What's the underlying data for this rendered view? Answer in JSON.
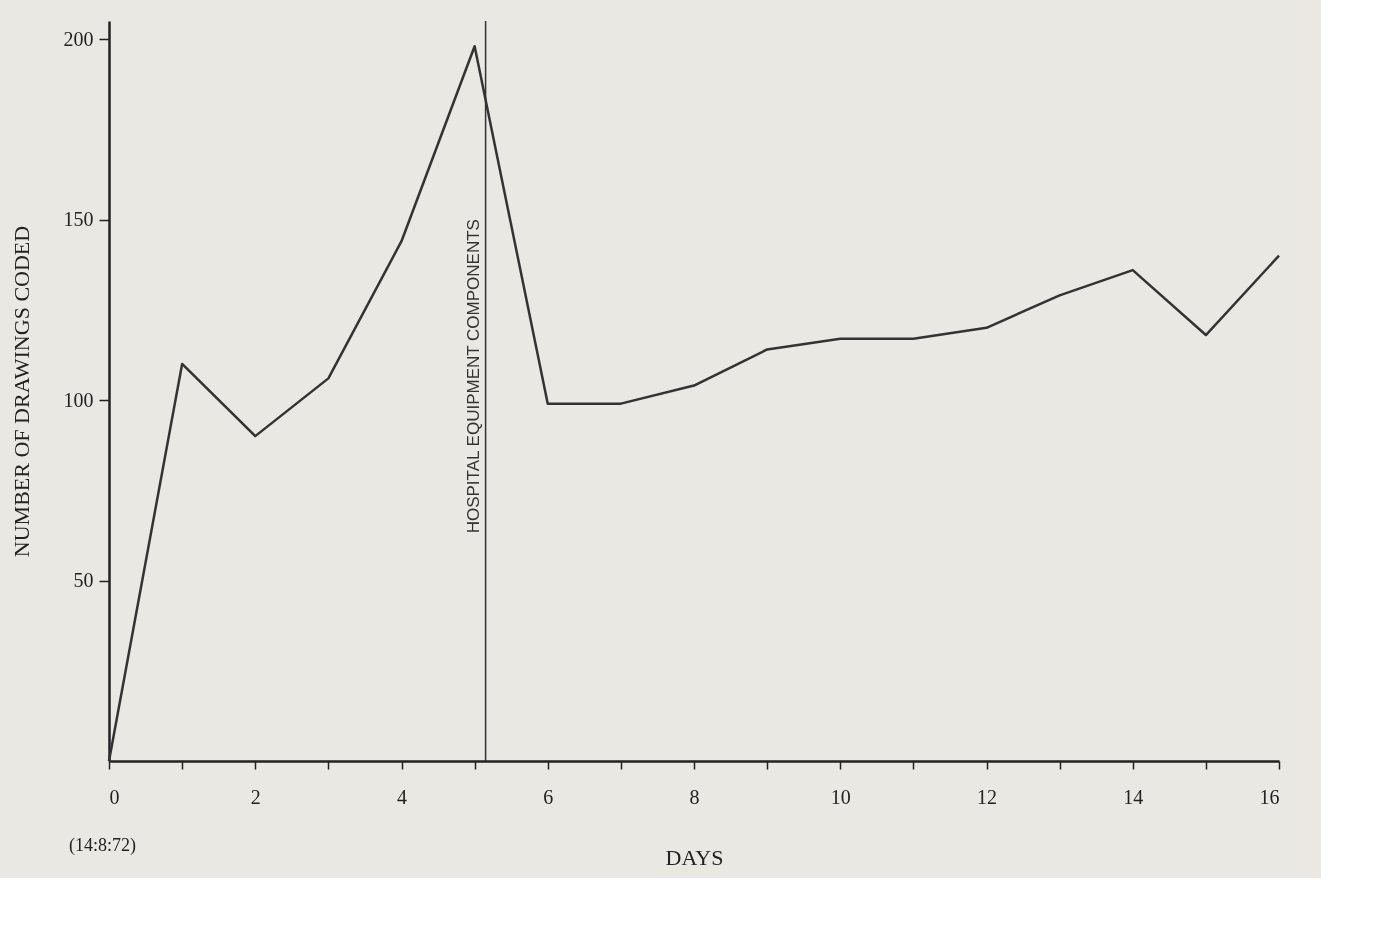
{
  "chart_data": {
    "type": "line",
    "xlabel": "DAYS",
    "ylabel": "NUMBER OF DRAWINGS CODED",
    "x": [
      0,
      1,
      2,
      3,
      4,
      5,
      6,
      7,
      8,
      9,
      10,
      11,
      12,
      13,
      14,
      15,
      16
    ],
    "series": [
      {
        "color": "#333333",
        "values": [
          0,
          110,
          90,
          106,
          144,
          198,
          99,
          99,
          104,
          114,
          117,
          117,
          120,
          129,
          136,
          118,
          140
        ]
      }
    ],
    "xlim": [
      0,
      16
    ],
    "ylim": [
      0,
      205
    ],
    "xticks": [
      0,
      {
        "value": 1,
        "label": null
      },
      2,
      {
        "value": 3,
        "label": null
      },
      4,
      {
        "value": 5,
        "label": null
      },
      6,
      {
        "value": 7,
        "label": null
      },
      8,
      {
        "value": 9,
        "label": null
      },
      10,
      {
        "value": 11,
        "label": null
      },
      12,
      {
        "value": 13,
        "label": null
      },
      14,
      {
        "value": 15,
        "label": null
      },
      16
    ],
    "yticks": [
      50,
      100,
      150,
      200
    ],
    "grid": false,
    "marker": "none",
    "line_style": "solid",
    "ref_lines": [
      {
        "axis": "x",
        "value": 5.15,
        "label": "HOSPITAL EQUIPMENT COMPONENTS"
      }
    ],
    "annotations": [
      "(14:8:72)"
    ]
  }
}
